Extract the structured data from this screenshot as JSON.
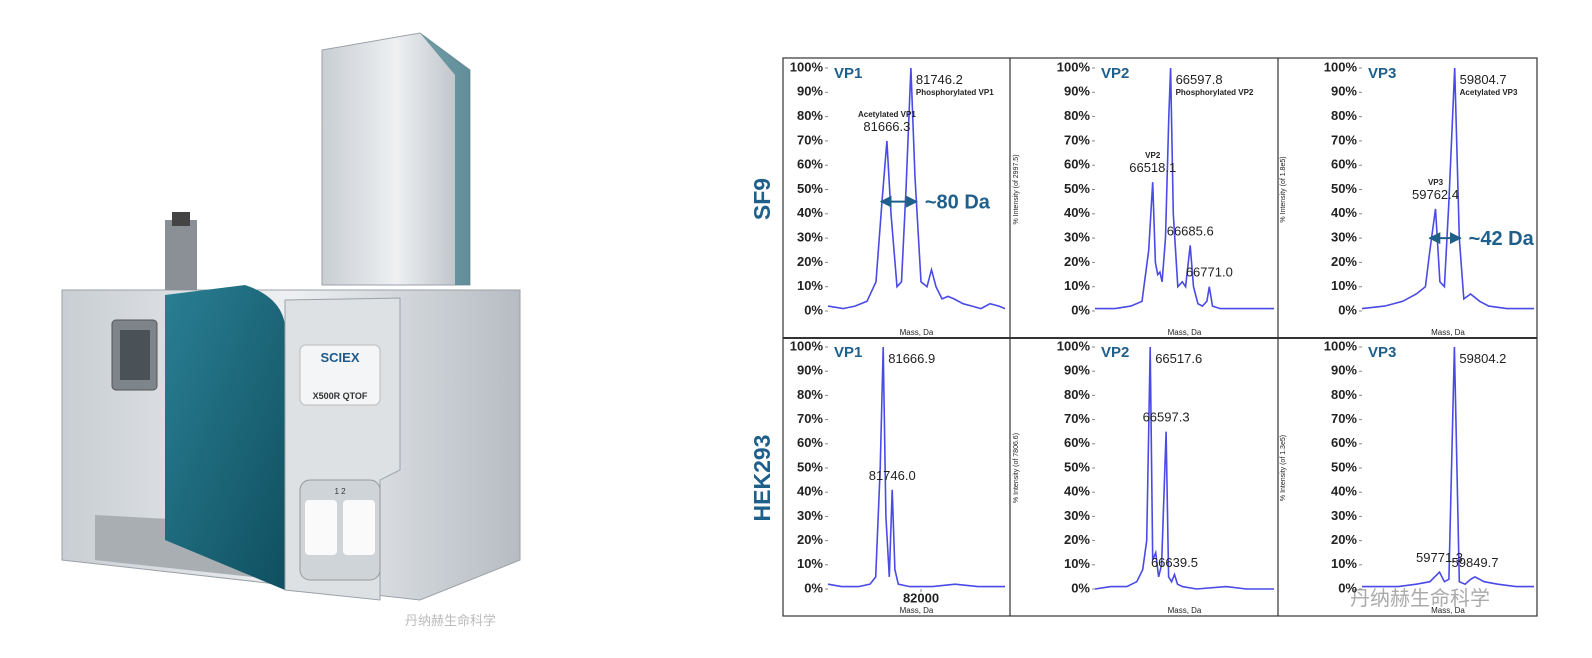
{
  "instrument": {
    "brand": "SCIEX",
    "model": "X500R QTOF",
    "slots": "1 2"
  },
  "row_labels": [
    "SF9",
    "HEK293"
  ],
  "watermarks": [
    "丹纳赫生命科学",
    "丹纳赫生命科学"
  ],
  "chart_data": [
    {
      "type": "line",
      "title": "VP1",
      "xlabel": "Mass, Da",
      "color": "#4a4ae6",
      "xlim": [
        81470,
        82060
      ],
      "ylim": [
        0,
        100
      ],
      "yticks": [
        {
          "value": 0,
          "label": "0%"
        },
        {
          "value": 10,
          "label": "10%"
        },
        {
          "value": 20,
          "label": "20%"
        },
        {
          "value": 30,
          "label": "30%"
        },
        {
          "value": 40,
          "label": "40%"
        },
        {
          "value": 50,
          "label": "50%"
        },
        {
          "value": 60,
          "label": "60%"
        },
        {
          "value": 70,
          "label": "70%"
        },
        {
          "value": 80,
          "label": "80%"
        },
        {
          "value": 90,
          "label": "90%"
        },
        {
          "value": 100,
          "label": "100%"
        }
      ],
      "x": [
        81470,
        81520,
        81560,
        81600,
        81630,
        81650,
        81666.3,
        81680,
        81700,
        81715,
        81730,
        81746.2,
        81760,
        81780,
        81800,
        81815,
        81830,
        81850,
        81870,
        81890,
        81920,
        81950,
        81980,
        82010,
        82040,
        82060
      ],
      "values": [
        2,
        1,
        2,
        4,
        12,
        45,
        70,
        40,
        10,
        12,
        50,
        100,
        55,
        12,
        10,
        17,
        10,
        5,
        6,
        5,
        3,
        2,
        1,
        3,
        2,
        1
      ],
      "annotations": [
        {
          "text": "81666.3",
          "note": "Acetylated VP1",
          "x": 81666.3,
          "y": 70
        },
        {
          "text": "81746.2",
          "note": "Phosphorylated VP1",
          "x": 81746.2,
          "y": 100
        }
      ],
      "arrows": [
        {
          "text": "~80 Da",
          "x1": 81666.3,
          "x2": 81746.2,
          "y": 45
        }
      ]
    },
    {
      "type": "line",
      "title": "VP2",
      "xlabel": "Mass, Da",
      "ylabel": "% Intensity (of 2997.5)",
      "color": "#4a4ae6",
      "xlim": [
        66260,
        67060
      ],
      "ylim": [
        0,
        100
      ],
      "yticks": [
        {
          "value": 0,
          "label": "0%"
        },
        {
          "value": 10,
          "label": "10%"
        },
        {
          "value": 20,
          "label": "20%"
        },
        {
          "value": 30,
          "label": "30%"
        },
        {
          "value": 40,
          "label": "40%"
        },
        {
          "value": 50,
          "label": "50%"
        },
        {
          "value": 60,
          "label": "60%"
        },
        {
          "value": 70,
          "label": "70%"
        },
        {
          "value": 80,
          "label": "80%"
        },
        {
          "value": 90,
          "label": "90%"
        },
        {
          "value": 100,
          "label": "100%"
        }
      ],
      "x": [
        66260,
        66350,
        66420,
        66470,
        66500,
        66518.1,
        66530,
        66540,
        66550,
        66560,
        66575,
        66590,
        66597.8,
        66610,
        66630,
        66650,
        66665,
        66685.6,
        66700,
        66720,
        66740,
        66760,
        66771,
        66785,
        66820,
        66900,
        66980,
        67060
      ],
      "values": [
        1,
        1,
        2,
        4,
        25,
        53,
        20,
        15,
        16,
        12,
        30,
        80,
        100,
        40,
        10,
        12,
        10,
        27,
        10,
        3,
        2,
        4,
        10,
        2,
        1,
        1,
        1,
        1
      ],
      "annotations": [
        {
          "text": "66597.8",
          "note": "Phosphorylated VP2",
          "x": 66597.8,
          "y": 100
        },
        {
          "text": "66518.1",
          "note": "VP2",
          "x": 66518.1,
          "y": 53
        },
        {
          "text": "66685.6",
          "x": 66685.6,
          "y": 27
        },
        {
          "text": "66771.0",
          "x": 66771,
          "y": 10
        }
      ]
    },
    {
      "type": "line",
      "title": "VP3",
      "xlabel": "Mass, Da",
      "ylabel": "% Intensity (of 1.8e5)",
      "color": "#4a4ae6",
      "xlim": [
        59600,
        59980
      ],
      "ylim": [
        0,
        100
      ],
      "yticks": [
        {
          "value": 0,
          "label": "0%"
        },
        {
          "value": 10,
          "label": "10%"
        },
        {
          "value": 20,
          "label": "20%"
        },
        {
          "value": 30,
          "label": "30%"
        },
        {
          "value": 40,
          "label": "40%"
        },
        {
          "value": 50,
          "label": "50%"
        },
        {
          "value": 60,
          "label": "60%"
        },
        {
          "value": 70,
          "label": "70%"
        },
        {
          "value": 80,
          "label": "80%"
        },
        {
          "value": 90,
          "label": "90%"
        },
        {
          "value": 100,
          "label": "100%"
        }
      ],
      "x": [
        59600,
        59650,
        59690,
        59720,
        59740,
        59750,
        59762.4,
        59772,
        59782,
        59792,
        59804.7,
        59815,
        59825,
        59840,
        59860,
        59880,
        59920,
        59980
      ],
      "values": [
        1,
        2,
        4,
        7,
        10,
        25,
        42,
        12,
        10,
        45,
        100,
        30,
        5,
        7,
        4,
        2,
        1,
        1
      ],
      "annotations": [
        {
          "text": "59804.7",
          "note": "Acetylated VP3",
          "x": 59804.7,
          "y": 100
        },
        {
          "text": "59762.4",
          "note": "VP3",
          "x": 59762.4,
          "y": 42
        }
      ],
      "arrows": [
        {
          "text": "~42 Da",
          "x1": 59762.4,
          "x2": 59804.7,
          "y": 30
        }
      ]
    },
    {
      "type": "line",
      "title": "VP1",
      "xlabel": "Mass, Da",
      "color": "#4a4ae6",
      "xlim": [
        81180,
        82740
      ],
      "ylim": [
        0,
        100
      ],
      "xticks": [
        82000
      ],
      "yticks": [
        {
          "value": 0,
          "label": "0%"
        },
        {
          "value": 10,
          "label": "10%"
        },
        {
          "value": 20,
          "label": "20%"
        },
        {
          "value": 30,
          "label": "30%"
        },
        {
          "value": 40,
          "label": "40%"
        },
        {
          "value": 50,
          "label": "50%"
        },
        {
          "value": 60,
          "label": "60%"
        },
        {
          "value": 70,
          "label": "70%"
        },
        {
          "value": 80,
          "label": "80%"
        },
        {
          "value": 90,
          "label": "90%"
        },
        {
          "value": 100,
          "label": "100%"
        }
      ],
      "x": [
        81180,
        81300,
        81450,
        81550,
        81600,
        81640,
        81666.9,
        81690,
        81720,
        81746,
        81770,
        81800,
        81900,
        82000,
        82100,
        82300,
        82500,
        82740
      ],
      "values": [
        2,
        1,
        1,
        2,
        5,
        50,
        100,
        30,
        5,
        41,
        8,
        2,
        1,
        1,
        1,
        2,
        1,
        1
      ],
      "annotations": [
        {
          "text": "81666.9",
          "x": 81666.9,
          "y": 100
        },
        {
          "text": "81746.0",
          "x": 81746,
          "y": 41
        }
      ]
    },
    {
      "type": "line",
      "title": "VP2",
      "xlabel": "Mass, Da",
      "ylabel": "% Intensity (of 7806.6)",
      "color": "#4a4ae6",
      "xlim": [
        66240,
        67140
      ],
      "ylim": [
        0,
        100
      ],
      "yticks": [
        {
          "value": 0,
          "label": "0%"
        },
        {
          "value": 10,
          "label": "10%"
        },
        {
          "value": 20,
          "label": "20%"
        },
        {
          "value": 30,
          "label": "30%"
        },
        {
          "value": 40,
          "label": "40%"
        },
        {
          "value": 50,
          "label": "50%"
        },
        {
          "value": 60,
          "label": "60%"
        },
        {
          "value": 70,
          "label": "70%"
        },
        {
          "value": 80,
          "label": "80%"
        },
        {
          "value": 90,
          "label": "90%"
        },
        {
          "value": 100,
          "label": "100%"
        }
      ],
      "x": [
        66240,
        66320,
        66400,
        66450,
        66480,
        66500,
        66517.6,
        66530,
        66545,
        66560,
        66575,
        66597.3,
        66610,
        66625,
        66639.5,
        66655,
        66680,
        66750,
        66900,
        67000,
        67140
      ],
      "values": [
        0,
        1,
        1,
        3,
        8,
        20,
        100,
        12,
        15,
        5,
        10,
        65,
        5,
        3,
        6,
        2,
        1,
        0,
        1,
        0,
        0
      ],
      "annotations": [
        {
          "text": "66517.6",
          "x": 66517.6,
          "y": 100
        },
        {
          "text": "66597.3",
          "x": 66597.3,
          "y": 65
        },
        {
          "text": "66639.5",
          "x": 66639.5,
          "y": 5
        }
      ]
    },
    {
      "type": "line",
      "title": "VP3",
      "xlabel": "Mass, Da",
      "ylabel": "% Intensity (of 1.3e5)",
      "color": "#4a4ae6",
      "xlim": [
        59600,
        59980
      ],
      "ylim": [
        0,
        100
      ],
      "yticks": [
        {
          "value": 0,
          "label": "0%"
        },
        {
          "value": 10,
          "label": "10%"
        },
        {
          "value": 20,
          "label": "20%"
        },
        {
          "value": 30,
          "label": "30%"
        },
        {
          "value": 40,
          "label": "40%"
        },
        {
          "value": 50,
          "label": "50%"
        },
        {
          "value": 60,
          "label": "60%"
        },
        {
          "value": 70,
          "label": "70%"
        },
        {
          "value": 80,
          "label": "80%"
        },
        {
          "value": 90,
          "label": "90%"
        },
        {
          "value": 100,
          "label": "100%"
        }
      ],
      "x": [
        59600,
        59680,
        59720,
        59750,
        59771.3,
        59782,
        59792,
        59804.2,
        59815,
        59828,
        59840,
        59849.7,
        59870,
        59900,
        59940,
        59980
      ],
      "values": [
        1,
        1,
        2,
        3,
        7,
        3,
        4,
        100,
        3,
        2,
        4,
        5,
        3,
        2,
        1,
        1
      ],
      "annotations": [
        {
          "text": "59804.2",
          "x": 59804.2,
          "y": 100
        },
        {
          "text": "59771.3",
          "x": 59771.3,
          "y": 7
        },
        {
          "text": "59849.7",
          "x": 59849.7,
          "y": 5
        }
      ]
    }
  ]
}
